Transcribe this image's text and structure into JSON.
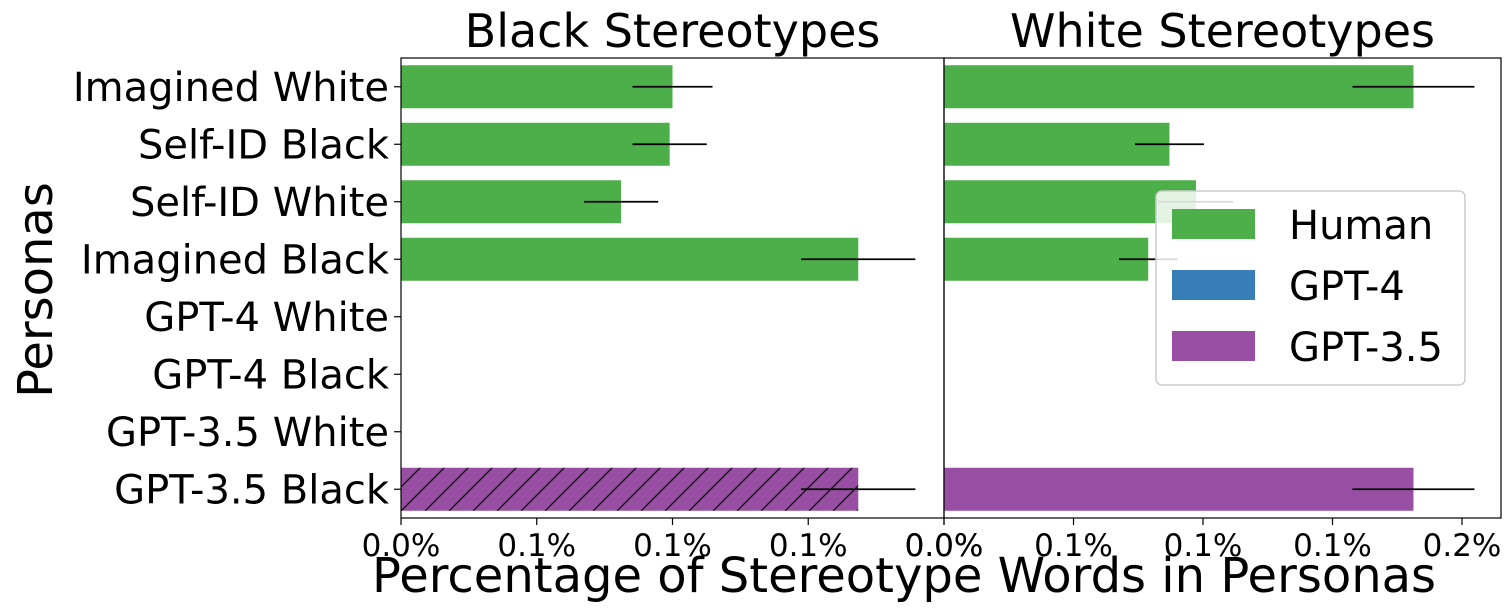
{
  "chart_data": {
    "type": "bar",
    "orientation": "horizontal",
    "xlabel": "Percentage of Stereotype Words in Personas",
    "ylabel": "Personas",
    "categories": [
      "Imagined White",
      "Self-ID Black",
      "Self-ID White",
      "Imagined Black",
      "GPT-4 White",
      "GPT-4 Black",
      "GPT-3.5 White",
      "GPT-3.5 Black"
    ],
    "legend": {
      "placement": "center-right",
      "entries": [
        {
          "label": "Human",
          "color": "#4daf4a"
        },
        {
          "label": "GPT-4",
          "color": "#377eb8"
        },
        {
          "label": "GPT-3.5",
          "color": "#984ea3"
        }
      ]
    },
    "panels": [
      {
        "title": "Black Stereotypes",
        "xlim": [
          0,
          0.0019
        ],
        "xtick_labels": [
          "0.0%",
          "0.1%",
          "0.1%",
          "0.1%",
          "0.0%"
        ],
        "bars": [
          {
            "category": "Imagined White",
            "value": 0.00095,
            "err": 0.00014,
            "group": "Human",
            "hatch": false
          },
          {
            "category": "Self-ID Black",
            "value": 0.00094,
            "err": 0.00013,
            "group": "Human",
            "hatch": false
          },
          {
            "category": "Self-ID White",
            "value": 0.00077,
            "err": 0.00013,
            "group": "Human",
            "hatch": false
          },
          {
            "category": "Imagined Black",
            "value": 0.0016,
            "err": 0.0002,
            "group": "Human",
            "hatch": false
          },
          {
            "category": "GPT-3.5 Black",
            "value": 0.0016,
            "err": 0.0002,
            "group": "GPT-3.5",
            "hatch": true
          }
        ]
      },
      {
        "title": "White Stereotypes",
        "xlim": [
          0,
          0.0021
        ],
        "xtick_labels": [
          "0.0%",
          "0.1%",
          "0.1%",
          "0.1%",
          "0.2%"
        ],
        "bars": [
          {
            "category": "Imagined White",
            "value": 0.00177,
            "err": 0.00023,
            "group": "Human",
            "hatch": false
          },
          {
            "category": "Self-ID Black",
            "value": 0.00085,
            "err": 0.00013,
            "group": "Human",
            "hatch": false
          },
          {
            "category": "Self-ID White",
            "value": 0.00095,
            "err": 0.00014,
            "group": "Human",
            "hatch": false
          },
          {
            "category": "Imagined Black",
            "value": 0.00077,
            "err": 0.00011,
            "group": "Human",
            "hatch": false
          },
          {
            "category": "GPT-3.5 Black",
            "value": 0.00177,
            "err": 0.00023,
            "group": "GPT-3.5",
            "hatch": false
          }
        ]
      }
    ]
  }
}
